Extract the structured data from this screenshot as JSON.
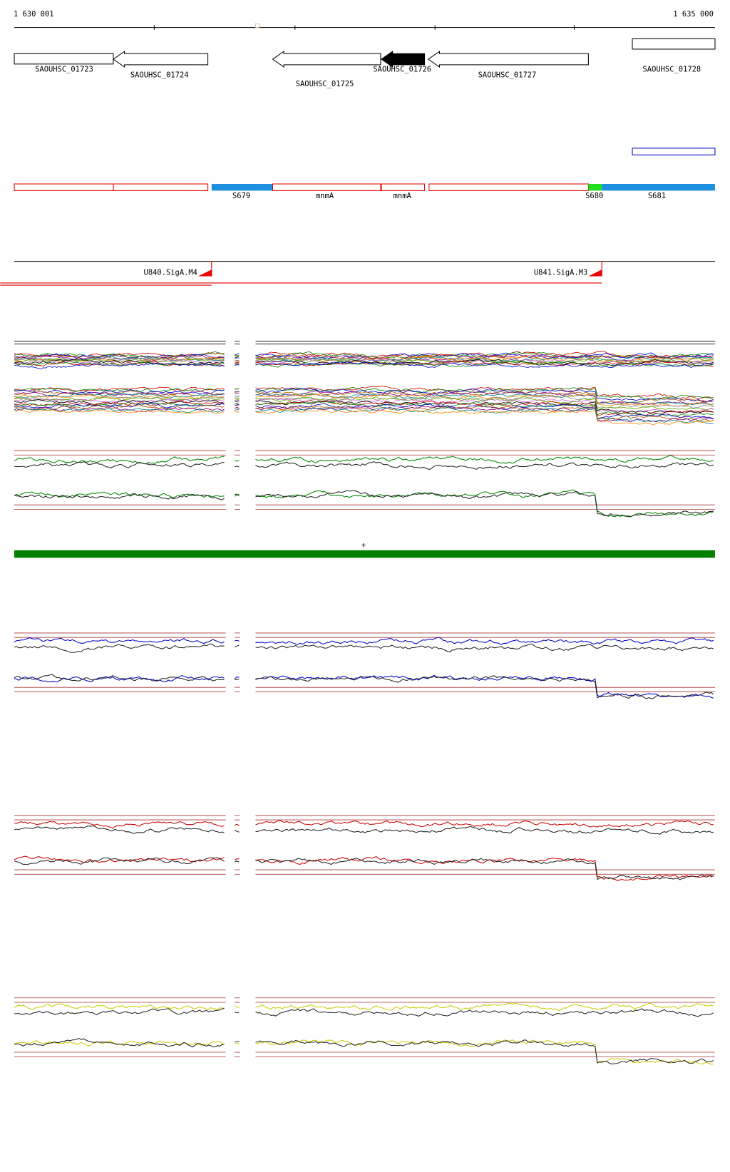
{
  "ruler": {
    "start": "1 630 001",
    "end": "1 635 000"
  },
  "genes": [
    "SAOUHSC_01723",
    "SAOUHSC_01724",
    "SAOUHSC_01725",
    "SAOUHSC_01726",
    "SAOUHSC_01727",
    "SAOUHSC_01728"
  ],
  "features": [
    "S679",
    "mnmA",
    "mnmA",
    "S680",
    "S681"
  ],
  "promoters": [
    "U840.SigA.M4",
    "U841.SigA.M3"
  ],
  "strand_marker": "+"
}
